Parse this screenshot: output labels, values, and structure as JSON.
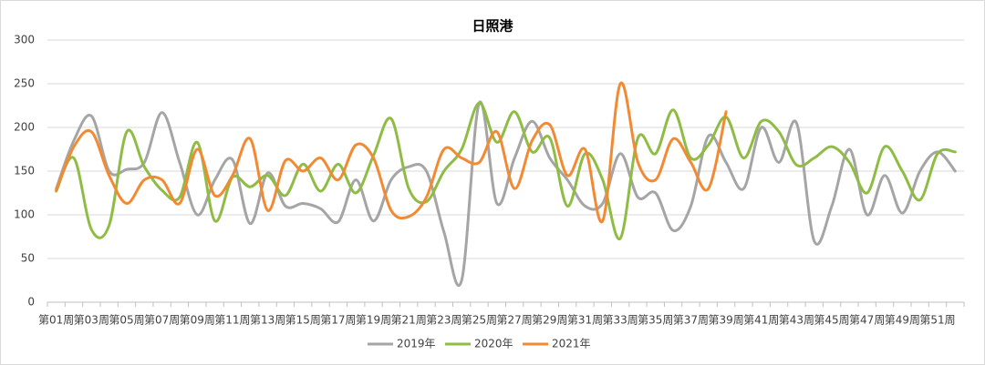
{
  "chart_data": {
    "type": "line",
    "title": "日照港",
    "categories": [
      "第01周",
      null,
      "第03周",
      null,
      "第05周",
      null,
      "第07周",
      null,
      "第09周",
      null,
      "第11周",
      null,
      "第13周",
      null,
      "第15周",
      null,
      "第17周",
      null,
      "第19周",
      null,
      "第21周",
      null,
      "第23周",
      null,
      "第25周",
      null,
      "第27周",
      null,
      "第29周",
      null,
      "第31周",
      null,
      "第33周",
      null,
      "第35周",
      null,
      "第37周",
      null,
      "第39周",
      null,
      "第41周",
      null,
      "第43周",
      null,
      "第45周",
      null,
      "第47周",
      null,
      "第49周",
      null,
      "第51周",
      null
    ],
    "series": [
      {
        "name": "2019年",
        "color": "#a5a5a5",
        "values": [
          130,
          185,
          213,
          150,
          152,
          160,
          217,
          160,
          100,
          140,
          163,
          90,
          148,
          110,
          113,
          107,
          92,
          140,
          93,
          140,
          155,
          150,
          80,
          25,
          228,
          113,
          165,
          207,
          165,
          140,
          110,
          113,
          170,
          120,
          125,
          82,
          110,
          190,
          160,
          130,
          200,
          160,
          205,
          70,
          110,
          175,
          100,
          145,
          102,
          150,
          172,
          150
        ]
      },
      {
        "name": "2020年",
        "color": "#8fbc45",
        "values": [
          127,
          165,
          83,
          88,
          195,
          155,
          128,
          120,
          183,
          93,
          143,
          132,
          145,
          122,
          158,
          127,
          158,
          125,
          168,
          210,
          130,
          115,
          150,
          175,
          228,
          183,
          218,
          172,
          188,
          110,
          170,
          140,
          73,
          188,
          170,
          220,
          165,
          180,
          212,
          165,
          207,
          195,
          157,
          165,
          178,
          160,
          125,
          178,
          150,
          117,
          170,
          172
        ]
      },
      {
        "name": "2021年",
        "color": "#f28a33",
        "values": [
          128,
          178,
          195,
          145,
          113,
          140,
          140,
          113,
          175,
          122,
          145,
          187,
          105,
          162,
          150,
          165,
          140,
          180,
          165,
          105,
          98,
          120,
          175,
          165,
          160,
          195,
          130,
          185,
          203,
          145,
          175,
          93,
          250,
          160,
          140,
          187,
          160,
          130,
          218,
          null,
          null,
          null,
          null,
          null,
          null,
          null,
          null,
          null,
          null,
          null,
          null,
          null
        ]
      }
    ],
    "ylim": [
      0,
      300
    ],
    "yticks": [
      0,
      50,
      100,
      150,
      200,
      250,
      300
    ],
    "grid": true,
    "legend": "bottom"
  }
}
